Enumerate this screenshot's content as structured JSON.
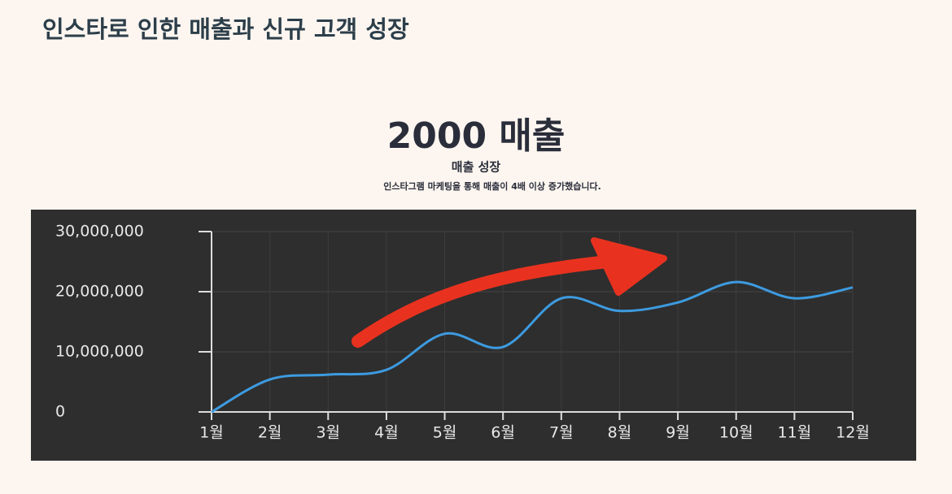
{
  "header": {
    "title": "인스타로 인한 매출과 신규 고객 성장"
  },
  "chart_data": {
    "type": "line",
    "title": "2000 매출",
    "subtitle": "매출 성장",
    "annotation": "인스타그램 마케팅을 통해 매출이 4배 이상 증가했습니다.",
    "categories": [
      "1월",
      "2월",
      "3월",
      "4월",
      "5월",
      "6월",
      "7월",
      "8월",
      "9월",
      "10월",
      "11월",
      "12월"
    ],
    "values": [
      0,
      5400000,
      6200000,
      7000000,
      13000000,
      10800000,
      18900000,
      16800000,
      18200000,
      21600000,
      18900000,
      20700000
    ],
    "color": "#3d9be0",
    "ylim": [
      0,
      30000000
    ],
    "yticks": [
      0,
      {
        "value": 10000000,
        "label": "10,000,000"
      },
      {
        "value": 20000000,
        "label": "20,000,000"
      },
      {
        "value": 30000000,
        "label": "30,000,000"
      }
    ],
    "grid": true
  }
}
